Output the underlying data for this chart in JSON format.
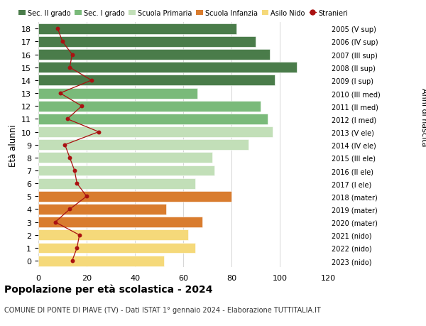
{
  "ages": [
    18,
    17,
    16,
    15,
    14,
    13,
    12,
    11,
    10,
    9,
    8,
    7,
    6,
    5,
    4,
    3,
    2,
    1,
    0
  ],
  "right_labels": [
    "2005 (V sup)",
    "2006 (IV sup)",
    "2007 (III sup)",
    "2008 (II sup)",
    "2009 (I sup)",
    "2010 (III med)",
    "2011 (II med)",
    "2012 (I med)",
    "2013 (V ele)",
    "2014 (IV ele)",
    "2015 (III ele)",
    "2016 (II ele)",
    "2017 (I ele)",
    "2018 (mater)",
    "2019 (mater)",
    "2020 (mater)",
    "2021 (nido)",
    "2022 (nido)",
    "2023 (nido)"
  ],
  "bar_values": [
    82,
    90,
    96,
    107,
    98,
    66,
    92,
    95,
    97,
    87,
    72,
    73,
    65,
    80,
    53,
    68,
    62,
    65,
    52
  ],
  "bar_colors": [
    "#4a7c4a",
    "#4a7c4a",
    "#4a7c4a",
    "#4a7c4a",
    "#4a7c4a",
    "#7aba7a",
    "#7aba7a",
    "#7aba7a",
    "#c2dfb8",
    "#c2dfb8",
    "#c2dfb8",
    "#c2dfb8",
    "#c2dfb8",
    "#d97c2e",
    "#d97c2e",
    "#d97c2e",
    "#f5d97a",
    "#f5d97a",
    "#f5d97a"
  ],
  "stranieri_values": [
    8,
    10,
    14,
    13,
    22,
    9,
    18,
    12,
    25,
    11,
    13,
    15,
    16,
    20,
    13,
    7,
    17,
    16,
    14
  ],
  "legend_labels": [
    "Sec. II grado",
    "Sec. I grado",
    "Scuola Primaria",
    "Scuola Infanzia",
    "Asilo Nido",
    "Stranieri"
  ],
  "legend_colors": [
    "#4a7c4a",
    "#7aba7a",
    "#c2dfb8",
    "#d97c2e",
    "#f5d97a",
    "#aa1111"
  ],
  "title": "Popolazione per età scolastica - 2024",
  "subtitle": "COMUNE DI PONTE DI PIAVE (TV) - Dati ISTAT 1° gennaio 2024 - Elaborazione TUTTITALIA.IT",
  "ylabel_left": "Età alunni",
  "ylabel_right": "Anni di nascita",
  "xlim": [
    0,
    120
  ],
  "xticks": [
    0,
    20,
    40,
    60,
    80,
    100,
    120
  ],
  "bg_color": "#ffffff",
  "bar_edgecolor": "#ffffff",
  "grid_color": "#d0d0d0",
  "stranieri_color": "#aa1111"
}
